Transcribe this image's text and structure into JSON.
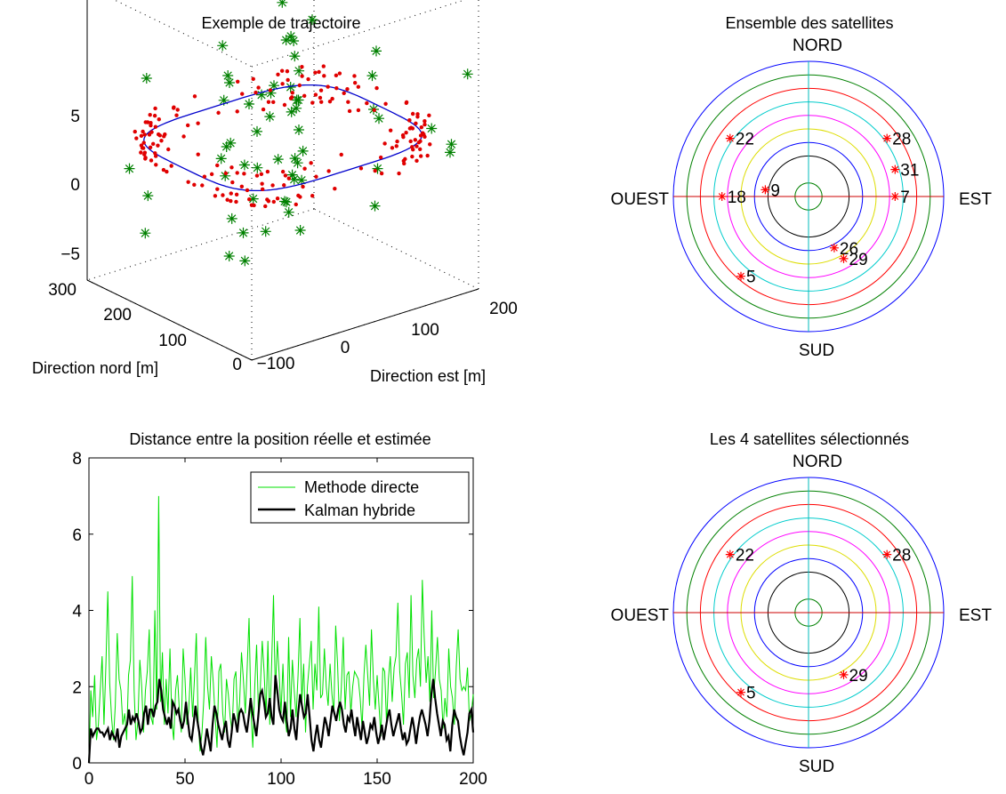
{
  "colors": {
    "stars": "#008000",
    "dots": "#e00000",
    "path": "#0000cc",
    "methode": "#00e000",
    "kalman": "#000000",
    "sat_marker": "#ff0000",
    "ring_colors": [
      "#008000",
      "#ffffff",
      "#000000",
      "#0000ff",
      "#dddd00",
      "#ff00ff",
      "#00cccc",
      "#ff0000",
      "#008000",
      "#0000ff"
    ],
    "axis_ns": "#00bbbb",
    "axis_ew": "#cc0000"
  },
  "chart_data": [
    {
      "type": "scatter",
      "title": "Exemple de trajectoire",
      "xlabel": "Direction est [m]",
      "ylabel": "Direction nord [m]",
      "x_ticks": [
        "−100",
        "0",
        "100",
        "200"
      ],
      "y_ticks": [
        "0",
        "100",
        "200",
        "300"
      ],
      "z_ticks": [
        "5",
        "0",
        "−5"
      ],
      "xlim": [
        -100,
        200
      ],
      "ylim": [
        0,
        300
      ],
      "zlim": [
        -7,
        7
      ],
      "grid": true,
      "series": [
        {
          "marker": "star",
          "color": "green",
          "x": [
            -95,
            -80,
            -60,
            -40,
            -20,
            0,
            20,
            40,
            60,
            80,
            100,
            120,
            140,
            160,
            180,
            200,
            -90,
            -70,
            -50,
            -30,
            -10,
            10,
            30,
            50,
            70,
            90,
            110,
            130,
            150,
            170,
            190,
            -85,
            -65,
            -45,
            -25,
            -5,
            15,
            35,
            55,
            75,
            95,
            115,
            135,
            155,
            175,
            195,
            -75,
            -35,
            5,
            45,
            85,
            125,
            165,
            -55,
            -15,
            25,
            65,
            105,
            145,
            185
          ],
          "y": [
            20,
            40,
            60,
            80,
            100,
            120,
            140,
            160,
            180,
            200,
            220,
            240,
            260,
            280,
            300,
            20,
            50,
            80,
            110,
            140,
            170,
            200,
            230,
            260,
            290,
            30,
            60,
            90,
            120,
            150,
            180,
            210,
            240,
            270,
            10,
            40,
            70,
            100,
            130,
            160,
            190,
            220,
            250,
            280,
            15,
            45,
            75,
            105,
            135,
            165,
            195,
            225,
            255,
            285,
            35,
            95,
            155,
            215,
            275,
            65
          ],
          "z": [
            2,
            -3,
            4,
            -1,
            0,
            3,
            -4,
            1,
            2,
            -2,
            5,
            -5,
            0,
            1,
            -3,
            3,
            -1,
            2,
            -4,
            4,
            0,
            -2,
            1,
            3,
            -3,
            2,
            -1,
            4,
            -4,
            0,
            1,
            -2,
            3,
            -5,
            2,
            0,
            -3,
            4,
            -1,
            1,
            -2,
            3,
            -4,
            2,
            0,
            -1,
            5,
            -3,
            1,
            2,
            -4,
            0,
            3,
            -2,
            4,
            -1,
            1,
            -5,
            2,
            0
          ]
        },
        {
          "marker": "dot",
          "color": "red",
          "note_points": 200
        },
        {
          "marker": "line",
          "color": "blue"
        }
      ]
    },
    {
      "type": "polar",
      "title": "Ensemble des satellites",
      "directions": {
        "north": "NORD",
        "south": "SUD",
        "east": "EST",
        "west": "OUEST"
      },
      "rings": 10,
      "satellites": [
        {
          "id": "22",
          "x": -0.58,
          "y": 0.43
        },
        {
          "id": "28",
          "x": 0.58,
          "y": 0.43
        },
        {
          "id": "31",
          "x": 0.64,
          "y": 0.2
        },
        {
          "id": "9",
          "x": -0.32,
          "y": 0.05
        },
        {
          "id": "18",
          "x": -0.64,
          "y": 0.0
        },
        {
          "id": "7",
          "x": 0.64,
          "y": 0.0
        },
        {
          "id": "26",
          "x": 0.19,
          "y": -0.38
        },
        {
          "id": "29",
          "x": 0.26,
          "y": -0.46
        },
        {
          "id": "5",
          "x": -0.5,
          "y": -0.59
        }
      ]
    },
    {
      "type": "line",
      "title": "Distance entre la position réelle et estimée",
      "xlim": [
        0,
        200
      ],
      "ylim": [
        0,
        8
      ],
      "x_ticks": [
        "0",
        "50",
        "100",
        "150",
        "200"
      ],
      "y_ticks": [
        "0",
        "2",
        "4",
        "6",
        "8"
      ],
      "legend_position": "top-right",
      "series": [
        {
          "name": "Methode directe",
          "values": [
            0.0,
            1.9,
            1.2,
            2.3,
            0.6,
            1.0,
            1.9,
            2.8,
            1.0,
            2.6,
            4.5,
            2.1,
            1.2,
            0.6,
            1.5,
            3.4,
            2.2,
            1.9,
            1.0,
            1.3,
            0.6,
            2.3,
            2.7,
            4.9,
            1.9,
            0.6,
            1.1,
            2.7,
            2.0,
            0.8,
            1.9,
            2.4,
            3.5,
            1.2,
            1.0,
            4.0,
            1.4,
            7.0,
            1.6,
            2.9,
            1.0,
            2.2,
            1.3,
            3.0,
            1.1,
            0.6,
            1.9,
            2.3,
            1.4,
            0.8,
            3.0,
            2.2,
            1.0,
            1.4,
            2.5,
            1.2,
            2.2,
            3.4,
            1.1,
            0.3,
            0.8,
            1.7,
            3.3,
            2.0,
            1.4,
            2.8,
            2.1,
            1.2,
            0.4,
            2.4,
            2.6,
            1.3,
            0.8,
            2.2,
            1.8,
            1.2,
            0.8,
            2.2,
            2.4,
            1.0,
            1.6,
            2.9,
            2.2,
            1.3,
            2.5,
            3.8,
            1.4,
            0.4,
            2.0,
            3.1,
            1.3,
            2.0,
            3.2,
            2.4,
            1.2,
            3.2,
            1.0,
            2.6,
            4.4,
            1.8,
            3.2,
            2.3,
            1.3,
            2.6,
            1.2,
            0.8,
            3.3,
            1.2,
            2.7,
            1.9,
            1.2,
            2.3,
            3.8,
            1.6,
            2.6,
            0.8,
            2.0,
            2.6,
            3.2,
            1.4,
            2.6,
            1.9,
            4.1,
            1.7,
            1.8,
            3.0,
            2.0,
            1.5,
            2.6,
            1.8,
            1.3,
            3.6,
            2.6,
            1.1,
            2.0,
            3.3,
            1.4,
            2.3,
            2.4,
            1.3,
            2.0,
            2.4,
            2.3,
            2.2,
            1.7,
            0.9,
            2.3,
            3.1,
            2.3,
            1.5,
            3.5,
            2.2,
            1.4,
            2.3,
            1.5,
            0.7,
            2.5,
            2.4,
            1.0,
            2.2,
            2.8,
            1.6,
            2.5,
            2.8,
            4.2,
            2.4,
            1.8,
            1.0,
            2.6,
            2.9,
            1.7,
            4.4,
            2.3,
            1.7,
            2.7,
            3.0,
            2.0,
            4.8,
            3.3,
            2.1,
            2.8,
            1.6,
            4.0,
            1.7,
            2.4,
            3.3,
            2.2,
            1.9,
            0.9,
            1.7,
            1.2,
            3.0,
            2.0,
            1.7,
            1.0,
            2.5,
            3.5,
            2.2,
            1.9,
            2.0,
            1.9,
            2.5,
            1.1,
            1.3,
            1.8
          ]
        },
        {
          "name": "Kalman hybride",
          "values": [
            0.0,
            0.9,
            0.7,
            0.8,
            0.9,
            0.9,
            0.8,
            0.8,
            0.7,
            0.8,
            0.9,
            0.6,
            0.8,
            0.7,
            0.6,
            0.9,
            0.4,
            0.7,
            0.8,
            0.9,
            1.0,
            1.4,
            1.0,
            1.2,
            1.1,
            1.3,
            1.1,
            0.8,
            0.9,
            1.3,
            1.5,
            1.0,
            1.4,
            1.4,
            1.2,
            1.5,
            1.6,
            2.2,
            1.9,
            1.4,
            1.2,
            1.0,
            1.2,
            0.9,
            1.6,
            1.5,
            1.3,
            1.4,
            1.1,
            0.9,
            1.1,
            1.6,
            1.1,
            0.7,
            0.6,
            1.0,
            1.5,
            1.1,
            0.8,
            0.4,
            0.2,
            0.5,
            0.9,
            0.6,
            0.3,
            1.0,
            1.5,
            1.3,
            1.0,
            0.8,
            0.6,
            0.9,
            1.1,
            0.6,
            0.4,
            0.8,
            1.3,
            1.1,
            0.8,
            1.3,
            1.4,
            1.3,
            1.0,
            0.8,
            1.2,
            1.7,
            1.3,
            1.0,
            0.7,
            1.2,
            1.8,
            1.9,
            1.6,
            1.2,
            1.3,
            1.7,
            1.2,
            1.0,
            2.3,
            1.9,
            1.4,
            1.2,
            1.1,
            1.6,
            1.1,
            0.7,
            0.9,
            1.4,
            0.9,
            0.6,
            1.3,
            1.8,
            1.5,
            1.2,
            1.3,
            1.8,
            1.2,
            0.6,
            0.3,
            0.7,
            1.0,
            0.6,
            0.4,
            0.8,
            1.2,
            1.0,
            0.7,
            1.1,
            1.5,
            1.3,
            1.1,
            1.4,
            1.6,
            1.4,
            1.0,
            0.8,
            1.2,
            1.1,
            1.4,
            1.0,
            0.7,
            1.2,
            0.9,
            0.6,
            1.1,
            0.8,
            0.5,
            0.7,
            1.0,
            0.9,
            1.2,
            0.8,
            0.5,
            0.7,
            1.0,
            0.6,
            0.9,
            1.2,
            1.4,
            1.0,
            0.7,
            0.9,
            1.1,
            1.3,
            0.9,
            0.6,
            0.8,
            0.5,
            0.6,
            0.9,
            1.2,
            0.9,
            0.5,
            0.9,
            1.2,
            1.4,
            1.2,
            1.0,
            0.7,
            1.1,
            1.8,
            2.2,
            1.7,
            1.3,
            1.0,
            0.7,
            1.1,
            1.0,
            0.6,
            0.7,
            0.3,
            1.0,
            1.4,
            1.2,
            1.1,
            0.7,
            0.4,
            0.2,
            0.5,
            0.8,
            1.3,
            1.4,
            0.8
          ]
        }
      ]
    },
    {
      "type": "polar",
      "title": "Les 4 satellites sélectionnés",
      "directions": {
        "north": "NORD",
        "south": "SUD",
        "east": "EST",
        "west": "OUEST"
      },
      "rings": 10,
      "satellites": [
        {
          "id": "22",
          "x": -0.58,
          "y": 0.43
        },
        {
          "id": "28",
          "x": 0.58,
          "y": 0.43
        },
        {
          "id": "29",
          "x": 0.26,
          "y": -0.46
        },
        {
          "id": "5",
          "x": -0.5,
          "y": -0.59
        }
      ]
    }
  ]
}
